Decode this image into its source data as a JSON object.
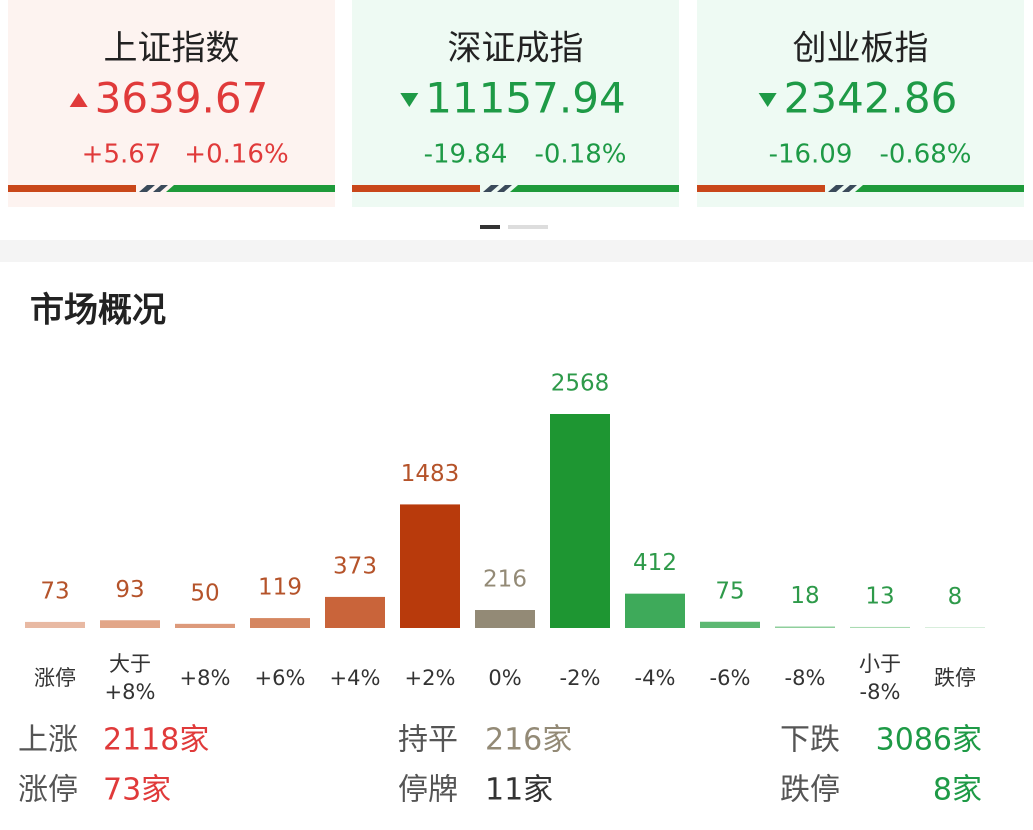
{
  "indices": [
    {
      "name": "上证指数",
      "value": "3639.67",
      "change": "+5.67",
      "pct": "+0.16%",
      "direction": "up"
    },
    {
      "name": "深证成指",
      "value": "11157.94",
      "change": "-19.84",
      "pct": "-0.18%",
      "direction": "down"
    },
    {
      "name": "创业板指",
      "value": "2342.86",
      "change": "-16.09",
      "pct": "-0.68%",
      "direction": "down"
    }
  ],
  "section_title": "市场概况",
  "chart": {
    "type": "bar",
    "categories": [
      "涨停",
      "大于\n+8%",
      "+8%",
      "+6%",
      "+4%",
      "+2%",
      "0%",
      "-2%",
      "-4%",
      "-6%",
      "-8%",
      "小于\n-8%",
      "跌停"
    ],
    "values": [
      73,
      93,
      50,
      119,
      373,
      1483,
      216,
      2568,
      412,
      75,
      18,
      13,
      8
    ],
    "colors": [
      "#e8b9a3",
      "#e2a688",
      "#dd9a7b",
      "#d58660",
      "#c9643a",
      "#b83a0c",
      "#938a76",
      "#1e9632",
      "#3eaa5a",
      "#5cb872",
      "#8fcf9c",
      "#a9dbb2",
      "#c4e6ca"
    ],
    "label_colors": [
      "#b5532a",
      "#b5532a",
      "#b5532a",
      "#b5532a",
      "#b5532a",
      "#b5532a",
      "#938a76",
      "#2e9a4a",
      "#2e9a4a",
      "#2e9a4a",
      "#2e9a4a",
      "#2e9a4a",
      "#2e9a4a"
    ]
  },
  "summary": [
    [
      {
        "label": "上涨",
        "value": "2118家"
      },
      {
        "label": "持平",
        "value": "216家"
      },
      {
        "label": "下跌",
        "value": "3086家"
      }
    ],
    [
      {
        "label": "涨停",
        "value": "73家"
      },
      {
        "label": "停牌",
        "value": "11家"
      },
      {
        "label": "跌停",
        "value": "8家"
      }
    ]
  ]
}
